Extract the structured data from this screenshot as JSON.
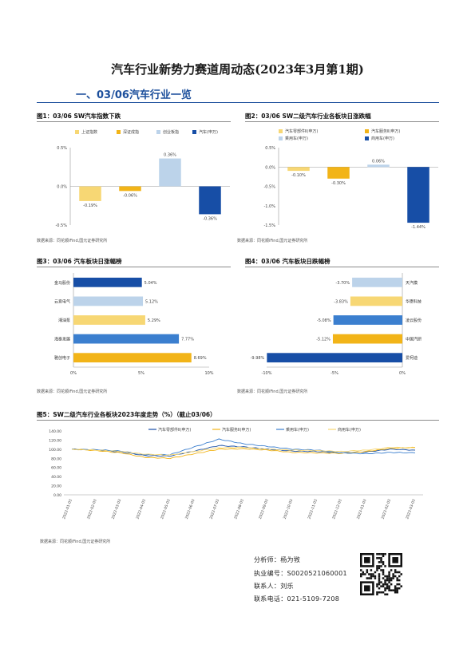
{
  "doc_title": "汽车行业新势力赛道周动态(2023年3月第1期)",
  "section_heading": "一、03/06汽车行业一览",
  "source_text": "数据来源：同花顺iFind,国元证券研究所",
  "colors": {
    "yellow_light": "#f7d774",
    "gold": "#f2b418",
    "light_blue": "#bcd3ea",
    "navy": "#174ea6",
    "mid_blue": "#3b7fcf",
    "accent": "#1c4f9c"
  },
  "fig1": {
    "title": "图1：03/06 SW汽车指数下跌",
    "chart_data": {
      "type": "bar",
      "series": [
        {
          "name": "上证指数",
          "value": -0.19,
          "label": "-0.19%"
        },
        {
          "name": "深证成指",
          "value": -0.06,
          "label": "-0.06%"
        },
        {
          "name": "创业板指",
          "value": 0.36,
          "label": "0.36%"
        },
        {
          "name": "汽车(申万)",
          "value": -0.36,
          "label": "-0.36%"
        }
      ],
      "ylim": [
        -0.5,
        0.5
      ],
      "yticks": [
        "0.5%",
        "0.0%",
        "-0.5%"
      ],
      "grid": false
    }
  },
  "fig2": {
    "title": "图2：03/06 SW二级汽车行业各板块日涨跌幅",
    "chart_data": {
      "type": "bar",
      "series": [
        {
          "name": "汽车零部件Ⅱ(申万)",
          "value": -0.1,
          "label": "-0.10%"
        },
        {
          "name": "汽车服务Ⅱ(申万)",
          "value": -0.3,
          "label": "-0.30%"
        },
        {
          "name": "乘用车(申万)",
          "value": 0.06,
          "label": "0.06%"
        },
        {
          "name": "商用车(申万)",
          "value": -1.44,
          "label": "-1.44%"
        }
      ],
      "ylim": [
        -1.5,
        0.5
      ],
      "yticks": [
        "0.5%",
        "0.0%",
        "-0.5%",
        "-1.0%",
        "-1.5%"
      ],
      "grid": false
    }
  },
  "fig3": {
    "title": "图3：03/06 汽车板块日涨幅榜",
    "chart_data": {
      "type": "bar",
      "orientation": "horizontal",
      "categories": [
        "金马股份",
        "云意电气",
        "湘油泵",
        "海泰发展",
        "雅创电子"
      ],
      "values": [
        5.04,
        5.12,
        5.29,
        7.77,
        8.69
      ],
      "labels": [
        "5.04%",
        "5.12%",
        "5.29%",
        "7.77%",
        "8.69%"
      ],
      "xlim": [
        0,
        10
      ],
      "xticks": [
        "0%",
        "5%",
        "10%"
      ]
    }
  },
  "fig4": {
    "title": "图4：03/06 汽车板块日跌幅榜",
    "chart_data": {
      "type": "bar",
      "orientation": "horizontal",
      "categories": [
        "天汽模",
        "华懋科技",
        "凌云股份",
        "中国汽研",
        "爱柯迪"
      ],
      "values": [
        -3.7,
        -3.83,
        -5.08,
        -5.12,
        -9.98
      ],
      "labels": [
        "-3.70%",
        "-3.83%",
        "-5.08%",
        "-5.12%",
        "-9.98%"
      ],
      "xlim": [
        -10,
        0
      ],
      "xticks": [
        "-10%",
        "-5%",
        "0%"
      ]
    }
  },
  "fig5": {
    "title": "图5：SW二级汽车行业各板块2023年度走势（%）（截止03/06）",
    "chart_data": {
      "type": "line",
      "legend": [
        "汽车零部件Ⅱ(申万)",
        "汽车服务Ⅱ(申万)",
        "乘用车(申万)",
        "商用车(申万)"
      ],
      "yticks": [
        "140.00",
        "120.00",
        "100.00",
        "80.00",
        "60.00",
        "40.00",
        "20.00",
        "0.00"
      ],
      "ylim": [
        0,
        140
      ],
      "xticks": [
        "2022-01-03",
        "2022-02-03",
        "2022-03-03",
        "2022-04-03",
        "2022-05-03",
        "2022-06-03",
        "2022-07-03",
        "2022-08-03",
        "2022-09-03",
        "2022-10-03",
        "2022-11-03",
        "2022-12-03",
        "2023-01-03",
        "2023-02-03",
        "2023-03-03"
      ],
      "series": [
        {
          "name": "汽车零部件Ⅱ(申万)",
          "values": [
            100,
            98,
            94,
            86,
            85,
            96,
            108,
            105,
            100,
            96,
            95,
            92,
            94,
            100,
            98
          ]
        },
        {
          "name": "汽车服务Ⅱ(申万)",
          "values": [
            100,
            97,
            92,
            82,
            80,
            90,
            100,
            101,
            98,
            93,
            92,
            91,
            95,
            102,
            104
          ]
        },
        {
          "name": "乘用车(申万)",
          "values": [
            100,
            99,
            96,
            88,
            88,
            105,
            122,
            112,
            106,
            100,
            98,
            92,
            90,
            93,
            92
          ]
        },
        {
          "name": "商用车(申万)",
          "values": [
            100,
            98,
            95,
            89,
            87,
            95,
            103,
            104,
            100,
            98,
            97,
            95,
            98,
            104,
            103
          ]
        }
      ]
    }
  },
  "footer": {
    "analyst": "分析师：杨为敩",
    "license": "执业编号：S0020521060001",
    "contact": "联系人：刘乐",
    "phone": "联系电话：021-5109-7208"
  }
}
